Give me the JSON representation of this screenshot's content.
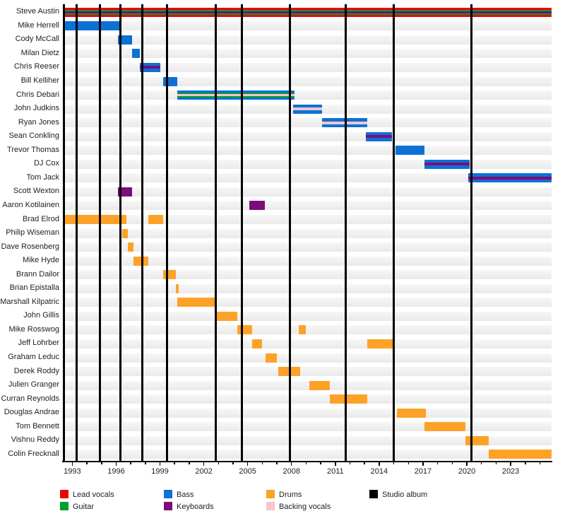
{
  "chart_data": {
    "type": "timeline_gantt",
    "description": "Band members timeline chart: rows are members, horizontal bars are tenure periods colored by role, vertical black lines mark studio albums.",
    "axis": {
      "min_year": 1992.4,
      "max_year": 2025.8,
      "major_tick_years": [
        1993,
        1996,
        1999,
        2002,
        2005,
        2008,
        2011,
        2014,
        2017,
        2020,
        2023
      ],
      "minor_tick_step": 1
    },
    "album_release_lines": [
      1992.4,
      1993.3,
      1994.9,
      1996.3,
      1997.8,
      1999.5,
      2002.8,
      2004.6,
      2007.9,
      2011.7,
      2015.0,
      2020.3
    ],
    "colors": {
      "lead_vocals": "#ee0000",
      "guitar": "#00a02c",
      "bass": "#0c71d4",
      "keyboards": "#7b0c7b",
      "drums": "#fca228",
      "backing_vocals": "#f9c4cb",
      "studio_album": "#000000"
    },
    "legend": [
      {
        "label": "Lead vocals",
        "key": "lead_vocals"
      },
      {
        "label": "Guitar",
        "key": "guitar"
      },
      {
        "label": "Bass",
        "key": "bass"
      },
      {
        "label": "Keyboards",
        "key": "keyboards"
      },
      {
        "label": "Drums",
        "key": "drums"
      },
      {
        "label": "Backing vocals",
        "key": "backing_vocals"
      },
      {
        "label": "Studio album",
        "key": "studio_album"
      }
    ],
    "members": [
      {
        "name": "Steve Austin",
        "roles": [
          "lead_vocals",
          "guitar",
          "keyboards"
        ],
        "segments": [
          [
            1992.4,
            2025.8
          ]
        ]
      },
      {
        "name": "Mike Herrell",
        "roles": [
          "bass"
        ],
        "segments": [
          [
            1992.4,
            1996.3
          ]
        ]
      },
      {
        "name": "Cody McCall",
        "roles": [
          "bass"
        ],
        "segments": [
          [
            1996.1,
            1997.1
          ]
        ]
      },
      {
        "name": "Milan Dietz",
        "roles": [
          "bass"
        ],
        "segments": [
          [
            1997.1,
            1997.6
          ]
        ]
      },
      {
        "name": "Chris Reeser",
        "roles": [
          "bass",
          "keyboards"
        ],
        "segments": [
          [
            1997.6,
            1999.0
          ]
        ]
      },
      {
        "name": "Bill Kelliher",
        "roles": [
          "bass"
        ],
        "segments": [
          [
            1999.2,
            2000.2
          ]
        ]
      },
      {
        "name": "Chris Debari",
        "roles": [
          "bass",
          "guitar",
          "backing_vocals"
        ],
        "segments": [
          [
            2000.2,
            2008.2
          ]
        ]
      },
      {
        "name": "John Judkins",
        "roles": [
          "bass",
          "backing_vocals"
        ],
        "segments": [
          [
            2008.1,
            2010.1
          ]
        ]
      },
      {
        "name": "Ryan Jones",
        "roles": [
          "bass",
          "backing_vocals"
        ],
        "segments": [
          [
            2010.1,
            2013.2
          ]
        ]
      },
      {
        "name": "Sean Conkling",
        "roles": [
          "bass",
          "keyboards"
        ],
        "segments": [
          [
            2013.1,
            2014.9
          ]
        ]
      },
      {
        "name": "Trevor Thomas",
        "roles": [
          "bass"
        ],
        "segments": [
          [
            2015.1,
            2017.1
          ]
        ]
      },
      {
        "name": "DJ Cox",
        "roles": [
          "bass",
          "keyboards"
        ],
        "segments": [
          [
            2017.1,
            2020.2
          ]
        ]
      },
      {
        "name": "Tom Jack",
        "roles": [
          "bass",
          "keyboards"
        ],
        "segments": [
          [
            2020.1,
            2025.8
          ]
        ]
      },
      {
        "name": "Scott Wexton",
        "roles": [
          "keyboards"
        ],
        "segments": [
          [
            1996.1,
            1997.1
          ]
        ]
      },
      {
        "name": "Aaron Kotilainen",
        "roles": [
          "keyboards"
        ],
        "segments": [
          [
            2005.1,
            2006.2
          ]
        ]
      },
      {
        "name": "Brad Elrod",
        "roles": [
          "drums"
        ],
        "segments": [
          [
            1992.4,
            1996.7
          ],
          [
            1998.2,
            1999.2
          ]
        ]
      },
      {
        "name": "Philip Wiseman",
        "roles": [
          "drums"
        ],
        "segments": [
          [
            1996.4,
            1996.8
          ]
        ]
      },
      {
        "name": "Dave Rosenberg",
        "roles": [
          "drums"
        ],
        "segments": [
          [
            1996.8,
            1997.2
          ]
        ]
      },
      {
        "name": "Mike Hyde",
        "roles": [
          "drums"
        ],
        "segments": [
          [
            1997.2,
            1998.2
          ]
        ]
      },
      {
        "name": "Brann Dailor",
        "roles": [
          "drums"
        ],
        "segments": [
          [
            1999.2,
            2000.1
          ]
        ]
      },
      {
        "name": "Brian Epistalla",
        "roles": [
          "drums"
        ],
        "segments": [
          [
            2000.1,
            2000.3
          ]
        ]
      },
      {
        "name": "Marshall Kilpatric",
        "roles": [
          "drums"
        ],
        "segments": [
          [
            2000.2,
            2002.9
          ]
        ]
      },
      {
        "name": "John Gillis",
        "roles": [
          "drums"
        ],
        "segments": [
          [
            2002.8,
            2004.3
          ]
        ]
      },
      {
        "name": "Mike Rosswog",
        "roles": [
          "drums"
        ],
        "segments": [
          [
            2004.3,
            2005.3
          ],
          [
            2008.5,
            2009.0
          ]
        ]
      },
      {
        "name": "Jeff Lohrber",
        "roles": [
          "drums"
        ],
        "segments": [
          [
            2005.3,
            2006.0
          ],
          [
            2013.2,
            2015.0
          ]
        ]
      },
      {
        "name": "Graham Leduc",
        "roles": [
          "drums"
        ],
        "segments": [
          [
            2006.2,
            2007.0
          ]
        ]
      },
      {
        "name": "Derek Roddy",
        "roles": [
          "drums"
        ],
        "segments": [
          [
            2007.1,
            2008.6
          ]
        ]
      },
      {
        "name": "Julien Granger",
        "roles": [
          "drums"
        ],
        "segments": [
          [
            2009.2,
            2010.6
          ]
        ]
      },
      {
        "name": "Curran Reynolds",
        "roles": [
          "drums"
        ],
        "segments": [
          [
            2010.6,
            2013.2
          ]
        ]
      },
      {
        "name": "Douglas Andrae",
        "roles": [
          "drums"
        ],
        "segments": [
          [
            2015.2,
            2017.2
          ]
        ]
      },
      {
        "name": "Tom Bennett",
        "roles": [
          "drums"
        ],
        "segments": [
          [
            2017.1,
            2019.9
          ]
        ]
      },
      {
        "name": "Vishnu Reddy",
        "roles": [
          "drums"
        ],
        "segments": [
          [
            2019.9,
            2021.5
          ]
        ]
      },
      {
        "name": "Colin Frecknall",
        "roles": [
          "drums"
        ],
        "segments": [
          [
            2021.5,
            2025.8
          ]
        ]
      }
    ]
  }
}
